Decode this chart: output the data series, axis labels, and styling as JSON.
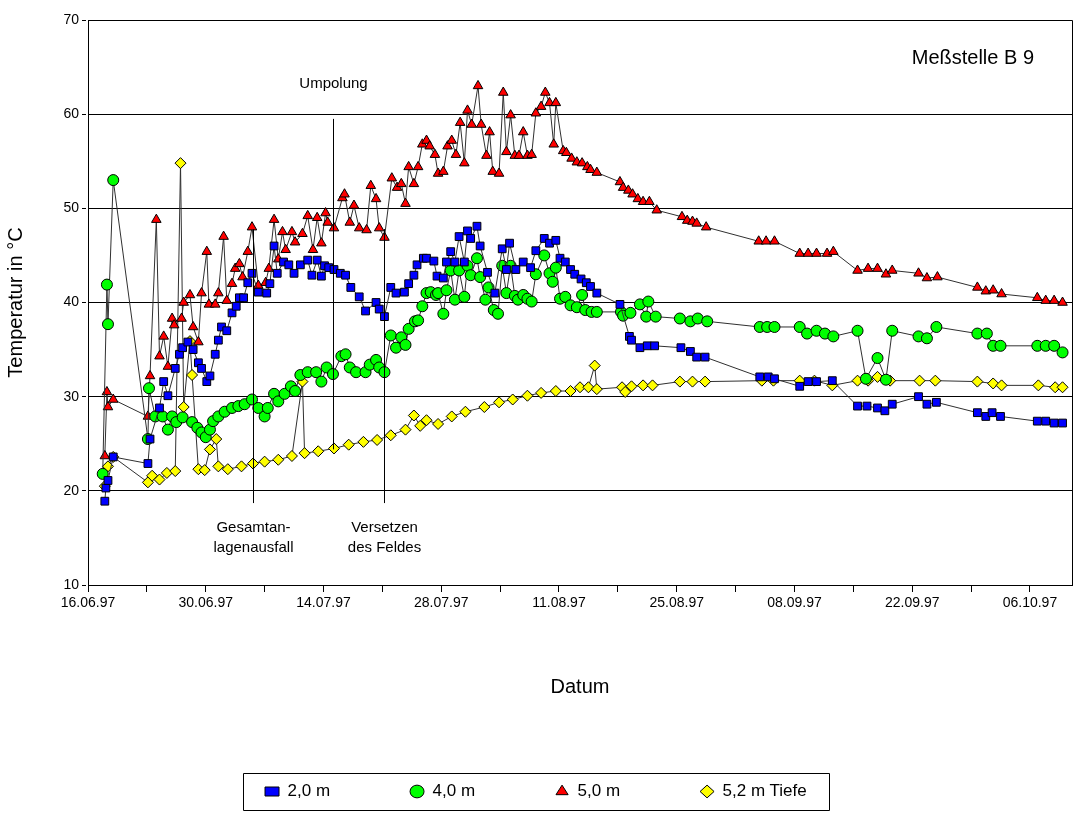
{
  "chart_data": {
    "type": "line",
    "title": "Meßstelle B 9",
    "xlabel": "Datum",
    "ylabel": "Temperatur in °C",
    "xlim": [
      "1997-06-16",
      "1997-10-11"
    ],
    "xticks": [
      {
        "value": "1997-06-16",
        "label": "16.06.97"
      },
      {
        "value": "1997-06-23",
        "label": null
      },
      {
        "value": "1997-06-30",
        "label": "30.06.97"
      },
      {
        "value": "1997-07-07",
        "label": null
      },
      {
        "value": "1997-07-14",
        "label": "14.07.97"
      },
      {
        "value": "1997-07-21",
        "label": null
      },
      {
        "value": "1997-07-28",
        "label": "28.07.97"
      },
      {
        "value": "1997-08-04",
        "label": null
      },
      {
        "value": "1997-08-11",
        "label": "11.08.97"
      },
      {
        "value": "1997-08-18",
        "label": null
      },
      {
        "value": "1997-08-25",
        "label": "25.08.97"
      },
      {
        "value": "1997-09-01",
        "label": null
      },
      {
        "value": "1997-09-08",
        "label": "08.09.97"
      },
      {
        "value": "1997-09-15",
        "label": null
      },
      {
        "value": "1997-09-22",
        "label": "22.09.97"
      },
      {
        "value": "1997-09-29",
        "label": null
      },
      {
        "value": "1997-10-06",
        "label": "06.10.97"
      }
    ],
    "ylim": [
      10,
      70
    ],
    "yticks": [
      10,
      20,
      30,
      40,
      50,
      60,
      70
    ],
    "grid": "y",
    "legend": "bottom",
    "ref_lines": [
      {
        "axis": "x",
        "value": "1997-07-05T15:00",
        "label": "Gesamtan-\nlagenausfall",
        "color": "#000000"
      },
      {
        "axis": "x",
        "value": "1997-07-15T03:00",
        "label": "Umpolung",
        "color": "#000000"
      },
      {
        "axis": "x",
        "value": "1997-07-21T06:00",
        "label": "Versetzen\ndes Feldes",
        "color": "#000000"
      }
    ],
    "series": [
      {
        "name": "2,0 m",
        "color": "#0000ff",
        "marker": "square",
        "x": [
          "1997-06-18T00:00",
          "1997-06-18T03:00",
          "1997-06-18T09:00",
          "1997-06-19T00:00",
          "1997-06-23T03:00",
          "1997-06-23T09:00",
          "1997-06-24T12:00",
          "1997-06-25T00:00",
          "1997-06-25T12:00",
          "1997-06-26T09:00",
          "1997-06-26T21:00",
          "1997-06-27T06:00",
          "1997-06-27T21:00",
          "1997-06-28T12:00",
          "1997-06-29T03:00",
          "1997-06-29T12:00",
          "1997-06-30T03:00",
          "1997-06-30T12:00",
          "1997-07-01T03:00",
          "1997-07-01T12:00",
          "1997-07-01T21:00",
          "1997-07-02T12:00",
          "1997-07-03T03:00",
          "1997-07-03T15:00",
          "1997-07-04T00:00",
          "1997-07-04T12:00",
          "1997-07-05T00:00",
          "1997-07-05T12:00",
          "1997-07-06T06:00",
          "1997-07-07T06:00",
          "1997-07-07T15:00",
          "1997-07-08T03:00",
          "1997-07-08T12:00",
          "1997-07-09T06:00",
          "1997-07-09T21:00",
          "1997-07-10T12:00",
          "1997-07-11T06:00",
          "1997-07-12T03:00",
          "1997-07-12T15:00",
          "1997-07-13T06:00",
          "1997-07-13T18:00",
          "1997-07-14T03:00",
          "1997-07-14T15:00",
          "1997-07-15T06:00",
          "1997-07-16T00:00",
          "1997-07-16T15:00",
          "1997-07-17T06:00",
          "1997-07-18T06:00",
          "1997-07-19T00:00",
          "1997-07-20T06:00",
          "1997-07-20T15:00",
          "1997-07-21T06:00",
          "1997-07-22T00:00",
          "1997-07-22T15:00",
          "1997-07-23T15:00",
          "1997-07-24T03:00",
          "1997-07-24T18:00",
          "1997-07-25T03:00",
          "1997-07-25T21:00",
          "1997-07-26T06:00",
          "1997-07-27T03:00",
          "1997-07-27T12:00",
          "1997-07-28T06:00",
          "1997-07-28T15:00",
          "1997-07-29T03:00",
          "1997-07-29T15:00",
          "1997-07-30T03:00",
          "1997-07-30T18:00",
          "1997-07-31T03:00",
          "1997-07-31T12:00",
          "1997-08-01T06:00",
          "1997-08-01T15:00",
          "1997-08-02T12:00",
          "1997-08-03T09:00",
          "1997-08-04T06:00",
          "1997-08-04T18:00",
          "1997-08-05T03:00",
          "1997-08-05T21:00",
          "1997-08-06T18:00",
          "1997-08-07T15:00",
          "1997-08-08T06:00",
          "1997-08-09T06:00",
          "1997-08-09T21:00",
          "1997-08-10T15:00",
          "1997-08-11T03:00",
          "1997-08-11T18:00",
          "1997-08-12T09:00",
          "1997-08-12T21:00",
          "1997-08-13T15:00",
          "1997-08-14T06:00",
          "1997-08-14T18:00",
          "1997-08-15T12:00",
          "1997-08-18T06:00",
          "1997-08-19T09:00",
          "1997-08-19T15:00",
          "1997-08-20T15:00",
          "1997-08-21T12:00",
          "1997-08-22T09:00",
          "1997-08-25T12:00",
          "1997-08-26T15:00",
          "1997-08-27T09:00",
          "1997-08-28T09:00",
          "1997-09-03T21:00",
          "1997-09-04T21:00",
          "1997-09-05T15:00",
          "1997-09-08T15:00",
          "1997-09-09T15:00",
          "1997-09-10T15:00",
          "1997-09-12T12:00",
          "1997-09-15T12:00",
          "1997-09-16T15:00",
          "1997-09-17T21:00",
          "1997-09-18T18:00",
          "1997-09-19T15:00",
          "1997-09-22T18:00",
          "1997-09-23T18:00",
          "1997-09-24T21:00",
          "1997-09-29T18:00",
          "1997-09-30T18:00",
          "1997-10-01T12:00",
          "1997-10-02T12:00",
          "1997-10-06T21:00",
          "1997-10-07T21:00",
          "1997-10-08T21:00",
          "1997-10-09T21:00"
        ],
        "values": [
          18.9,
          20.3,
          21.1,
          23.6,
          22.9,
          25.5,
          28.8,
          31.6,
          30.1,
          33,
          34.5,
          35.2,
          35.8,
          35,
          33.6,
          33,
          31.6,
          32.2,
          34.5,
          36,
          37.4,
          37,
          38.9,
          39.6,
          40.5,
          40.5,
          42.1,
          43.1,
          41.1,
          41,
          42,
          46,
          43.1,
          44.3,
          44,
          43.1,
          44,
          44.5,
          42.9,
          44.5,
          42.8,
          43.9,
          43.7,
          43.5,
          43.1,
          42.9,
          41.6,
          40.6,
          39.1,
          40,
          39.3,
          38.5,
          41.6,
          41,
          41.1,
          42,
          42.9,
          44,
          44.7,
          44.7,
          44.4,
          42.8,
          42.6,
          44.3,
          45.4,
          44.3,
          47,
          44.3,
          47.6,
          46.8,
          48.1,
          46,
          43.2,
          41,
          45.7,
          43.5,
          46.3,
          43.5,
          44.3,
          43.7,
          45.5,
          46.8,
          46.3,
          46.6,
          44.7,
          44.3,
          43.5,
          43,
          42.5,
          42.1,
          41.7,
          41,
          39.8,
          36.4,
          36,
          35.2,
          35.4,
          35.4,
          35.2,
          34.8,
          34.2,
          34.2,
          32.1,
          32.1,
          31.9,
          31.1,
          31.6,
          31.6,
          31.7,
          29,
          29,
          28.8,
          28.5,
          29.2,
          30,
          29.2,
          29.4,
          28.3,
          27.9,
          28.3,
          27.9,
          27.4,
          27.4,
          27.2,
          27.2
        ]
      },
      {
        "name": "4,0 m",
        "color": "#00ff00",
        "marker": "circle",
        "x": [
          "1997-06-17T18:00",
          "1997-06-18T06:00",
          "1997-06-18T09:00",
          "1997-06-19T00:00",
          "1997-06-23T03:00",
          "1997-06-23T06:00",
          "1997-06-24T00:00",
          "1997-06-24T21:00",
          "1997-06-25T12:00",
          "1997-06-26T00:00",
          "1997-06-26T12:00",
          "1997-06-27T06:00",
          "1997-06-28T09:00",
          "1997-06-29T00:00",
          "1997-06-29T12:00",
          "1997-06-30T00:00",
          "1997-06-30T12:00",
          "1997-06-30T21:00",
          "1997-07-01T12:00",
          "1997-07-02T06:00",
          "1997-07-03T03:00",
          "1997-07-03T21:00",
          "1997-07-04T15:00",
          "1997-07-05T12:00",
          "1997-07-06T06:00",
          "1997-07-07T00:00",
          "1997-07-07T09:00",
          "1997-07-08T03:00",
          "1997-07-08T15:00",
          "1997-07-09T09:00",
          "1997-07-10T03:00",
          "1997-07-10T15:00",
          "1997-07-11T06:00",
          "1997-07-12T03:00",
          "1997-07-13T03:00",
          "1997-07-13T18:00",
          "1997-07-14T09:00",
          "1997-07-15T03:00",
          "1997-07-16T03:00",
          "1997-07-16T15:00",
          "1997-07-17T03:00",
          "1997-07-17T21:00",
          "1997-07-19T00:00",
          "1997-07-19T12:00",
          "1997-07-20T06:00",
          "1997-07-20T15:00",
          "1997-07-21T06:00",
          "1997-07-22T00:00",
          "1997-07-22T15:00",
          "1997-07-23T06:00",
          "1997-07-23T18:00",
          "1997-07-24T03:00",
          "1997-07-24T21:00",
          "1997-07-25T06:00",
          "1997-07-25T18:00",
          "1997-07-26T06:00",
          "1997-07-26T18:00",
          "1997-07-27T09:00",
          "1997-07-27T15:00",
          "1997-07-28T06:00",
          "1997-07-28T15:00",
          "1997-07-29T03:00",
          "1997-07-29T15:00",
          "1997-07-30T03:00",
          "1997-07-30T18:00",
          "1997-07-31T03:00",
          "1997-07-31T12:00",
          "1997-08-01T06:00",
          "1997-08-01T15:00",
          "1997-08-02T06:00",
          "1997-08-02T15:00",
          "1997-08-03T06:00",
          "1997-08-03T18:00",
          "1997-08-04T06:00",
          "1997-08-04T18:00",
          "1997-08-05T06:00",
          "1997-08-05T18:00",
          "1997-08-06T03:00",
          "1997-08-06T18:00",
          "1997-08-07T06:00",
          "1997-08-07T18:00",
          "1997-08-08T06:00",
          "1997-08-09T06:00",
          "1997-08-09T21:00",
          "1997-08-10T06:00",
          "1997-08-10T15:00",
          "1997-08-11T03:00",
          "1997-08-11T18:00",
          "1997-08-12T09:00",
          "1997-08-13T03:00",
          "1997-08-13T18:00",
          "1997-08-14T03:00",
          "1997-08-14T21:00",
          "1997-08-15T12:00",
          "1997-08-18T09:00",
          "1997-08-18T15:00",
          "1997-08-19T12:00",
          "1997-08-20T15:00",
          "1997-08-21T09:00",
          "1997-08-21T15:00",
          "1997-08-22T12:00",
          "1997-08-25T09:00",
          "1997-08-26T15:00",
          "1997-08-27T12:00",
          "1997-08-28T15:00",
          "1997-09-03T21:00",
          "1997-09-04T18:00",
          "1997-09-05T15:00",
          "1997-09-08T15:00",
          "1997-09-09T12:00",
          "1997-09-10T15:00",
          "1997-09-11T15:00",
          "1997-09-12T15:00",
          "1997-09-15T12:00",
          "1997-09-16T12:00",
          "1997-09-17T21:00",
          "1997-09-18T21:00",
          "1997-09-19T15:00",
          "1997-09-22T18:00",
          "1997-09-23T18:00",
          "1997-09-24T21:00",
          "1997-09-29T18:00",
          "1997-09-30T21:00",
          "1997-10-01T15:00",
          "1997-10-02T12:00",
          "1997-10-06T21:00",
          "1997-10-07T21:00",
          "1997-10-08T21:00",
          "1997-10-09T21:00"
        ],
        "values": [
          21.8,
          41.9,
          37.7,
          53,
          25.5,
          30.9,
          27.9,
          27.9,
          26.5,
          27.9,
          27.3,
          27.8,
          27.3,
          26.7,
          26.2,
          25.7,
          26.5,
          27.4,
          27.9,
          28.4,
          28.8,
          29,
          29.2,
          29.7,
          28.8,
          27.9,
          28.8,
          30.3,
          29.5,
          30.3,
          31.1,
          30.6,
          32.3,
          32.6,
          32.6,
          31.6,
          33.1,
          32.4,
          34.3,
          34.5,
          33.1,
          32.6,
          32.6,
          33.4,
          33.9,
          33.1,
          32.6,
          36.5,
          35.2,
          36.3,
          35.5,
          37.2,
          38,
          38.1,
          39.6,
          41,
          41.1,
          40.8,
          41,
          38.8,
          41.3,
          43.4,
          40.3,
          43.4,
          40.6,
          43.9,
          42.9,
          44.7,
          42.7,
          40.3,
          41.6,
          39.2,
          38.8,
          43.9,
          41,
          43.9,
          40.7,
          40.3,
          40.8,
          40.4,
          40.1,
          43,
          45,
          43.1,
          42.2,
          43.7,
          40.4,
          40.6,
          39.7,
          39.5,
          40.8,
          39.2,
          39,
          39,
          39,
          38.6,
          38.9,
          39.8,
          38.5,
          40.1,
          38.5,
          38.3,
          38,
          38.3,
          38,
          37.4,
          37.4,
          37.4,
          37.4,
          36.7,
          37,
          36.7,
          36.4,
          37,
          31.9,
          34.1,
          31.8,
          37,
          36.4,
          36.2,
          37.4,
          36.7,
          36.7,
          35.4,
          35.4,
          35.4,
          35.4,
          35.4,
          34.7
        ]
      },
      {
        "name": "5,0 m",
        "color": "#ff0000",
        "marker": "triangle",
        "x": [
          "1997-06-18T00:00",
          "1997-06-18T06:00",
          "1997-06-18T09:00",
          "1997-06-19T00:00",
          "1997-06-23T03:00",
          "1997-06-23T09:00",
          "1997-06-24T03:00",
          "1997-06-24T12:00",
          "1997-06-25T00:00",
          "1997-06-25T12:00",
          "1997-06-26T00:00",
          "1997-06-26T06:00",
          "1997-06-27T03:00",
          "1997-06-27T09:00",
          "1997-06-28T03:00",
          "1997-06-28T12:00",
          "1997-06-29T03:00",
          "1997-06-29T12:00",
          "1997-06-30T03:00",
          "1997-06-30T09:00",
          "1997-07-01T03:00",
          "1997-07-01T12:00",
          "1997-07-02T03:00",
          "1997-07-02T12:00",
          "1997-07-03T03:00",
          "1997-07-03T12:00",
          "1997-07-04T00:00",
          "1997-07-04T09:00",
          "1997-07-05T00:00",
          "1997-07-05T12:00",
          "1997-07-06T06:00",
          "1997-07-07T03:00",
          "1997-07-07T12:00",
          "1997-07-08T03:00",
          "1997-07-08T15:00",
          "1997-07-09T03:00",
          "1997-07-09T12:00",
          "1997-07-10T06:00",
          "1997-07-10T15:00",
          "1997-07-11T12:00",
          "1997-07-12T03:00",
          "1997-07-12T18:00",
          "1997-07-13T06:00",
          "1997-07-13T18:00",
          "1997-07-14T06:00",
          "1997-07-14T12:00",
          "1997-07-15T06:00",
          "1997-07-16T06:00",
          "1997-07-16T12:00",
          "1997-07-17T03:00",
          "1997-07-17T15:00",
          "1997-07-18T06:00",
          "1997-07-19T03:00",
          "1997-07-19T15:00",
          "1997-07-20T06:00",
          "1997-07-20T15:00",
          "1997-07-21T06:00",
          "1997-07-22T03:00",
          "1997-07-22T18:00",
          "1997-07-23T06:00",
          "1997-07-23T18:00",
          "1997-07-24T03:00",
          "1997-07-24T18:00",
          "1997-07-25T06:00",
          "1997-07-25T18:00",
          "1997-07-26T06:00",
          "1997-07-26T15:00",
          "1997-07-27T06:00",
          "1997-07-27T15:00",
          "1997-07-28T06:00",
          "1997-07-28T18:00",
          "1997-07-29T06:00",
          "1997-07-29T18:00",
          "1997-07-30T06:00",
          "1997-07-30T18:00",
          "1997-07-31T03:00",
          "1997-07-31T15:00",
          "1997-08-01T09:00",
          "1997-08-01T18:00",
          "1997-08-02T09:00",
          "1997-08-02T18:00",
          "1997-08-03T03:00",
          "1997-08-03T21:00",
          "1997-08-04T09:00",
          "1997-08-04T18:00",
          "1997-08-05T06:00",
          "1997-08-05T18:00",
          "1997-08-06T06:00",
          "1997-08-06T18:00",
          "1997-08-07T06:00",
          "1997-08-07T18:00",
          "1997-08-08T06:00",
          "1997-08-08T21:00",
          "1997-08-09T09:00",
          "1997-08-09T21:00",
          "1997-08-10T09:00",
          "1997-08-10T15:00",
          "1997-08-11T12:00",
          "1997-08-11T21:00",
          "1997-08-12T12:00",
          "1997-08-13T03:00",
          "1997-08-13T18:00",
          "1997-08-14T09:00",
          "1997-08-14T18:00",
          "1997-08-15T12:00",
          "1997-08-18T06:00",
          "1997-08-18T15:00",
          "1997-08-19T06:00",
          "1997-08-19T18:00",
          "1997-08-20T09:00",
          "1997-08-21T00:00",
          "1997-08-21T18:00",
          "1997-08-22T15:00",
          "1997-08-25T15:00",
          "1997-08-26T06:00",
          "1997-08-26T21:00",
          "1997-08-27T09:00",
          "1997-08-28T12:00",
          "1997-09-03T18:00",
          "1997-09-04T15:00",
          "1997-09-05T15:00",
          "1997-09-08T15:00",
          "1997-09-09T15:00",
          "1997-09-10T15:00",
          "1997-09-11T21:00",
          "1997-09-12T15:00",
          "1997-09-15T12:00",
          "1997-09-16T18:00",
          "1997-09-17T21:00",
          "1997-09-18T21:00",
          "1997-09-19T15:00",
          "1997-09-22T18:00",
          "1997-09-23T18:00",
          "1997-09-25T00:00",
          "1997-09-29T18:00",
          "1997-09-30T18:00",
          "1997-10-01T15:00",
          "1997-10-02T15:00",
          "1997-10-06T21:00",
          "1997-10-07T21:00",
          "1997-10-08T21:00",
          "1997-10-09T21:00"
        ],
        "values": [
          23.7,
          30.5,
          28.9,
          29.7,
          27.9,
          32.2,
          48.8,
          34.3,
          36.4,
          33.2,
          38.3,
          37.6,
          38.3,
          40,
          40.8,
          37.4,
          35.8,
          41,
          45.4,
          39.8,
          39.8,
          41,
          47,
          40.2,
          42,
          43.6,
          44.1,
          42.7,
          45.4,
          48,
          41.8,
          42.1,
          43.6,
          48.8,
          44.6,
          47.5,
          45.6,
          47.5,
          46.4,
          47.3,
          49.2,
          45.6,
          49,
          46.3,
          49.5,
          48.5,
          47.9,
          51.1,
          51.5,
          48.5,
          50.3,
          47.9,
          47.7,
          52.4,
          51,
          47.9,
          46.9,
          53.2,
          52.2,
          52.6,
          50.5,
          54.4,
          52.6,
          54.4,
          56.8,
          57.2,
          56.6,
          55.7,
          53.7,
          53.9,
          56.6,
          57.2,
          55.7,
          59.1,
          54.8,
          60.4,
          58.9,
          63,
          58.9,
          55.6,
          58.1,
          53.9,
          53.7,
          62.3,
          56,
          59.9,
          55.6,
          55.6,
          58.1,
          55.6,
          55.7,
          60.1,
          60.8,
          62.3,
          61.2,
          56.8,
          61.2,
          56.1,
          55.9,
          55.3,
          54.9,
          54.8,
          54.4,
          54.1,
          53.8,
          52.8,
          52.2,
          51.9,
          51.5,
          51,
          50.7,
          50.7,
          49.8,
          49.1,
          48.7,
          48.6,
          48.4,
          48,
          46.5,
          46.5,
          46.5,
          45.2,
          45.2,
          45.2,
          45.2,
          45.4,
          43.4,
          43.6,
          43.6,
          43,
          43.4,
          43.1,
          42.6,
          42.7,
          41.6,
          41.2,
          41.3,
          40.9,
          40.5,
          40.2,
          40.2,
          40
        ]
      },
      {
        "name": "5,2 m Tiefe",
        "color": "#ffff00",
        "marker": "diamond",
        "x": [
          "1997-06-18T00:00",
          "1997-06-18T09:00",
          "1997-06-19T00:00",
          "1997-06-23T03:00",
          "1997-06-23T15:00",
          "1997-06-24T12:00",
          "1997-06-25T09:00",
          "1997-06-26T09:00",
          "1997-06-27T00:00",
          "1997-06-27T09:00",
          "1997-06-28T03:00",
          "1997-06-28T09:00",
          "1997-06-29T03:00",
          "1997-06-29T21:00",
          "1997-06-30T12:00",
          "1997-07-01T06:00",
          "1997-07-01T12:00",
          "1997-07-02T15:00",
          "1997-07-04T06:00",
          "1997-07-05T15:00",
          "1997-07-07T00:00",
          "1997-07-08T15:00",
          "1997-07-10T06:00",
          "1997-07-11T12:00",
          "1997-07-11T18:00",
          "1997-07-13T09:00",
          "1997-07-15T06:00",
          "1997-07-17T00:00",
          "1997-07-18T18:00",
          "1997-07-20T09:00",
          "1997-07-22T00:00",
          "1997-07-23T18:00",
          "1997-07-24T18:00",
          "1997-07-25T12:00",
          "1997-07-26T06:00",
          "1997-07-27T15:00",
          "1997-07-29T06:00",
          "1997-07-30T21:00",
          "1997-08-02T03:00",
          "1997-08-03T21:00",
          "1997-08-05T12:00",
          "1997-08-07T06:00",
          "1997-08-08T21:00",
          "1997-08-10T15:00",
          "1997-08-12T09:00",
          "1997-08-13T12:00",
          "1997-08-14T12:00",
          "1997-08-15T06:00",
          "1997-08-15T12:00",
          "1997-08-18T12:00",
          "1997-08-18T21:00",
          "1997-08-19T15:00",
          "1997-08-21T00:00",
          "1997-08-22T03:00",
          "1997-08-25T09:00",
          "1997-08-26T21:00",
          "1997-08-28T09:00",
          "1997-09-04T03:00",
          "1997-09-05T12:00",
          "1997-09-08T15:00",
          "1997-09-10T09:00",
          "1997-09-12T12:00",
          "1997-09-15T12:00",
          "1997-09-16T18:00",
          "1997-09-17T21:00",
          "1997-09-19T09:00",
          "1997-09-22T21:00",
          "1997-09-24T18:00",
          "1997-09-29T18:00",
          "1997-10-01T15:00",
          "1997-10-02T15:00",
          "1997-10-07T00:00",
          "1997-10-09T00:00",
          "1997-10-09T21:00"
        ],
        "values": [
          20.5,
          22.6,
          23.6,
          20.9,
          21.6,
          21.2,
          21.9,
          22.1,
          54.8,
          28.9,
          35.9,
          32.3,
          22.3,
          22.2,
          24.4,
          25.5,
          22.6,
          22.3,
          22.6,
          22.9,
          23.1,
          23.3,
          23.7,
          31.6,
          24,
          24.2,
          24.5,
          24.9,
          25.2,
          25.4,
          25.9,
          26.5,
          28,
          26.9,
          27.5,
          27.1,
          27.9,
          28.4,
          28.9,
          29.4,
          29.7,
          30.1,
          30.4,
          30.6,
          30.6,
          31,
          31,
          33.3,
          30.8,
          31,
          30.5,
          31.1,
          31.2,
          31.2,
          31.6,
          31.6,
          31.6,
          31.7,
          31.7,
          31.7,
          31.7,
          31.2,
          31.7,
          31.7,
          32.1,
          31.7,
          31.7,
          31.7,
          31.6,
          31.4,
          31.2,
          31.2,
          31,
          31
        ]
      }
    ]
  }
}
